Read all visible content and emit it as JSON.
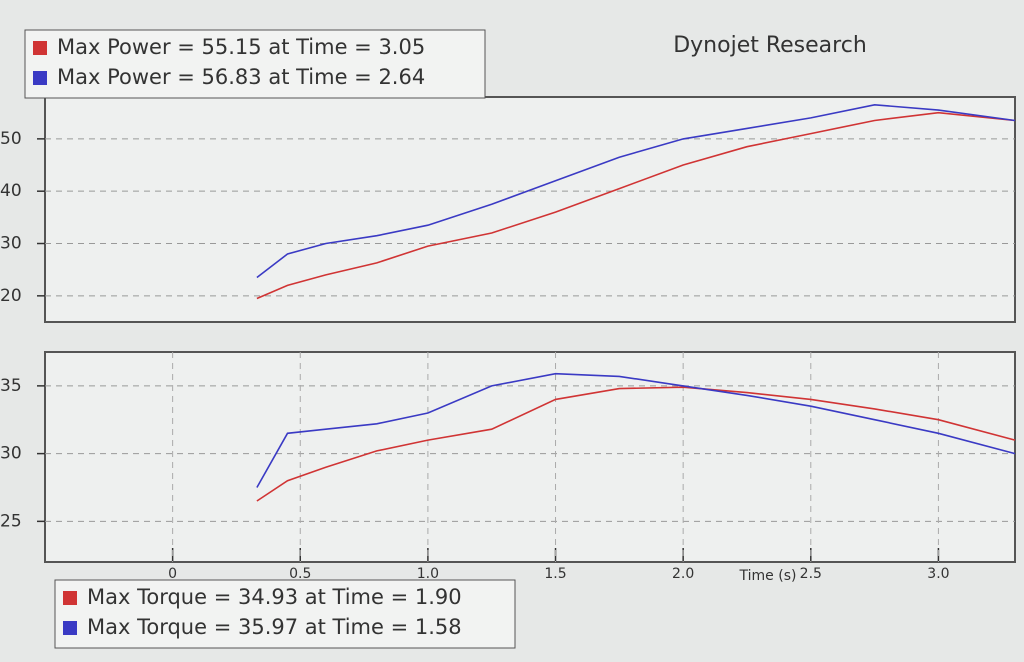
{
  "chart_data": [
    {
      "type": "line",
      "title": "Dynojet Research",
      "legend": "above",
      "x": [
        0.33,
        0.45,
        0.6,
        0.8,
        1.0,
        1.25,
        1.5,
        1.75,
        2.0,
        2.25,
        2.5,
        2.75,
        3.0,
        3.3
      ],
      "xlim": [
        -0.5,
        3.3
      ],
      "ylim": [
        15,
        58
      ],
      "yticks": [
        20,
        30,
        40,
        50
      ],
      "grid": true,
      "series": [
        {
          "name": "Max Power = 55.15 at Time = 3.05",
          "color": "#d03434",
          "values": [
            19.5,
            22,
            24,
            26.3,
            29.5,
            32,
            36,
            40.5,
            45,
            48.5,
            51,
            53.5,
            55,
            53.5
          ]
        },
        {
          "name": "Max Power = 56.83 at Time = 2.64",
          "color": "#3a3ac4",
          "values": [
            23.5,
            28,
            30,
            31.5,
            33.5,
            37.5,
            42,
            46.5,
            50,
            52,
            54,
            56.5,
            55.5,
            53.5
          ]
        }
      ]
    },
    {
      "type": "line",
      "x_label": "Time (s)",
      "legend": "below",
      "x": [
        0.33,
        0.45,
        0.6,
        0.8,
        1.0,
        1.25,
        1.5,
        1.75,
        2.0,
        2.25,
        2.5,
        2.75,
        3.0,
        3.3
      ],
      "xlim": [
        -0.5,
        3.3
      ],
      "xticks": [
        0,
        0.5,
        {
          "value": 1,
          "label": "1.0"
        },
        1.5,
        {
          "value": 2,
          "label": "2.0"
        },
        2.5,
        {
          "value": 3,
          "label": "3.0"
        }
      ],
      "ylim": [
        22,
        37.5
      ],
      "yticks": [
        25,
        30,
        35
      ],
      "grid": true,
      "series": [
        {
          "name": "Max Torque = 34.93 at Time = 1.90",
          "color": "#d03434",
          "values": [
            26.5,
            28,
            29,
            30.2,
            31,
            31.8,
            34,
            34.8,
            34.9,
            34.5,
            34,
            33.3,
            32.5,
            31
          ]
        },
        {
          "name": "Max Torque = 35.97 at Time = 1.58",
          "color": "#3a3ac4",
          "values": [
            27.5,
            31.5,
            31.8,
            32.2,
            33,
            35,
            35.9,
            35.7,
            35,
            34.3,
            33.5,
            32.5,
            31.5,
            30
          ]
        }
      ]
    }
  ]
}
